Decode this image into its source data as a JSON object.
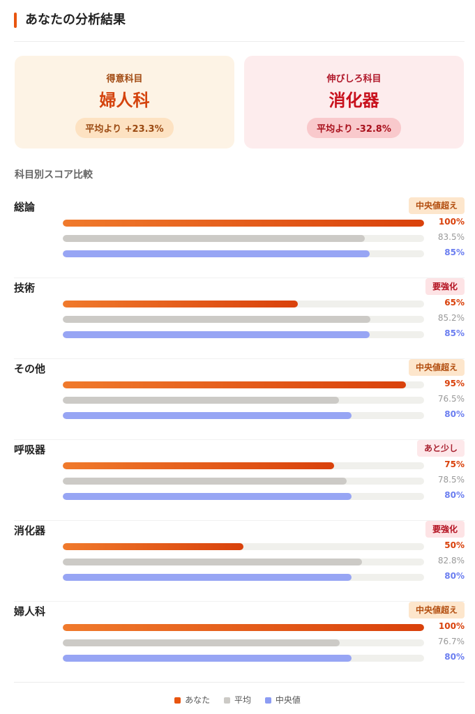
{
  "header": {
    "title": "あなたの分析結果"
  },
  "cards": {
    "strong": {
      "label": "得意科目",
      "subject": "婦人科",
      "diff": "平均より +23.3%"
    },
    "weak": {
      "label": "伸びしろ科目",
      "subject": "消化器",
      "diff": "平均より -32.8%"
    }
  },
  "section_title": "科目別スコア比較",
  "subjects": [
    {
      "name": "総論",
      "badge": "中央値超え",
      "badge_type": "above",
      "you": 100,
      "you_label": "100%",
      "avg": 83.5,
      "avg_label": "83.5%",
      "med": 85,
      "med_label": "85%"
    },
    {
      "name": "技術",
      "badge": "要強化",
      "badge_type": "weak",
      "you": 65,
      "you_label": "65%",
      "avg": 85.2,
      "avg_label": "85.2%",
      "med": 85,
      "med_label": "85%"
    },
    {
      "name": "その他",
      "badge": "中央値超え",
      "badge_type": "above",
      "you": 95,
      "you_label": "95%",
      "avg": 76.5,
      "avg_label": "76.5%",
      "med": 80,
      "med_label": "80%"
    },
    {
      "name": "呼吸器",
      "badge": "あと少し",
      "badge_type": "almost",
      "you": 75,
      "you_label": "75%",
      "avg": 78.5,
      "avg_label": "78.5%",
      "med": 80,
      "med_label": "80%"
    },
    {
      "name": "消化器",
      "badge": "要強化",
      "badge_type": "weak",
      "you": 50,
      "you_label": "50%",
      "avg": 82.8,
      "avg_label": "82.8%",
      "med": 80,
      "med_label": "80%"
    },
    {
      "name": "婦人科",
      "badge": "中央値超え",
      "badge_type": "above",
      "you": 100,
      "you_label": "100%",
      "avg": 76.7,
      "avg_label": "76.7%",
      "med": 80,
      "med_label": "80%"
    }
  ],
  "legend": {
    "you": "あなた",
    "avg": "平均",
    "med": "中央値"
  },
  "colors": {
    "accent": "#e8550f",
    "average": "#cccac6",
    "median": "#97a5f4",
    "weak": "#c8101c"
  }
}
